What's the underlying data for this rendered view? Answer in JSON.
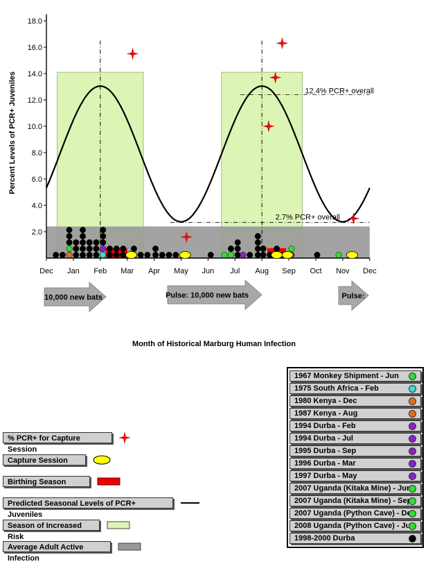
{
  "chart_data": {
    "type": "scatter",
    "ylabel": "Percent Levels of PCR+  Juveniles",
    "xlabel": "Month of Historical Marburg Human Infection",
    "ylim": [
      0,
      18
    ],
    "y_ticks": [
      "2.0",
      "4.0",
      "6.0",
      "8.0",
      "10.0",
      "12.0",
      "14.0",
      "16.0",
      "18.0"
    ],
    "x_ticks": [
      "Dec",
      "Jan",
      "Feb",
      "Mar",
      "Apr",
      "May",
      "Jun",
      "Jul",
      "Aug",
      "Sep",
      "Oct",
      "Nov",
      "Dec"
    ],
    "annotations": [
      "12.4% PCR+ overall",
      "2.7% PCR+ overall"
    ],
    "reference_levels": [
      12.4,
      2.7
    ],
    "average_adult_active_infection": 2.4,
    "increased_risk_seasons": [
      [
        0.4,
        3.6
      ],
      [
        6.5,
        9.5
      ]
    ],
    "birthing_seasons": [
      [
        2.2,
        3.0
      ],
      [
        8.2,
        8.9
      ]
    ],
    "predicted_curve_peaks_month": [
      2.0,
      8.0
    ],
    "pcr_capture_sessions": [
      {
        "month": 3.2,
        "value": 15.5
      },
      {
        "month": 5.2,
        "value": 1.6
      },
      {
        "month": 8.5,
        "value": 13.7
      },
      {
        "month": 8.75,
        "value": 16.3
      },
      {
        "month": 8.25,
        "value": 10.0
      },
      {
        "month": 11.4,
        "value": 3.0
      }
    ],
    "capture_sessions_month": [
      3.15,
      5.15,
      8.55,
      8.95,
      11.35
    ],
    "pulses": [
      "10,000 new bats",
      "Pulse: 10,000 new bats",
      "Pulse:"
    ]
  },
  "colors": {
    "increased_risk": "#ddf5b4",
    "average_adult": "#999999",
    "birthing": "#ee0000",
    "capture": "#ffff00",
    "star": "#dd1111",
    "green": "#33dd33",
    "cyan": "#33dddd",
    "orange": "#e07020",
    "purple": "#8822cc",
    "black": "#000000"
  },
  "left_legend": [
    {
      "label": "% PCR+ for Capture Session",
      "symbol": "star"
    },
    {
      "label": "Capture Session",
      "symbol": "ellipse"
    },
    {
      "label": "Birthing Season",
      "symbol": "red-rect"
    },
    {
      "label": "Predicted Seasonal Levels of PCR+ Juveniles",
      "symbol": "line"
    },
    {
      "label": "Season of Increased Risk",
      "symbol": "green-rect"
    },
    {
      "label": "Average Adult Active Infection",
      "symbol": "gray-rect"
    }
  ],
  "right_legend": [
    {
      "label": "1967 Monkey Shipment - Jun",
      "color": "#33dd33"
    },
    {
      "label": "1975 South Africa - Feb",
      "color": "#33dddd"
    },
    {
      "label": "1980 Kenya - Dec",
      "color": "#e07020"
    },
    {
      "label": "1987 Kenya - Aug",
      "color": "#e07020"
    },
    {
      "label": "1994 Durba - Feb",
      "color": "#8822cc"
    },
    {
      "label": "1994 Durba - Jul",
      "color": "#8822cc"
    },
    {
      "label": "1995 Durba - Sep",
      "color": "#8822cc"
    },
    {
      "label": "1996 Durba - Mar",
      "color": "#8822cc"
    },
    {
      "label": "1997 Durba - May",
      "color": "#8822cc"
    },
    {
      "label": "2007 Uganda (Kitaka Mine) - Jun",
      "color": "#33dd33"
    },
    {
      "label": "2007 Uganda (Kitaka Mine) - Sep",
      "color": "#33dd33"
    },
    {
      "label": "2007 Uganda (Python Cave) - Dec",
      "color": "#33dd33"
    },
    {
      "label": "2008 Uganda (Python Cave) - Jun",
      "color": "#33dd33"
    },
    {
      "label": "1998-2000 Durba",
      "color": "#000000"
    }
  ]
}
